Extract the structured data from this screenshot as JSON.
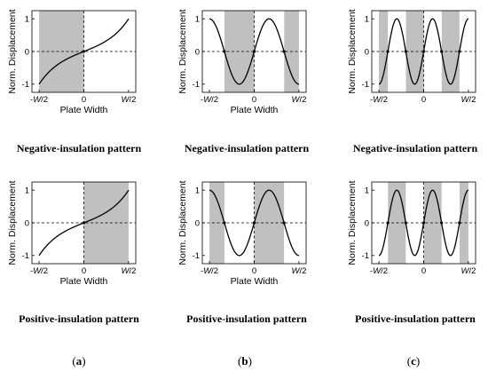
{
  "chart_data": [
    {
      "type": "line",
      "row": "negative",
      "column": "a",
      "x_range": [
        -0.5,
        0.5
      ],
      "ylim": [
        -1,
        1
      ],
      "xticks": [
        "-W/2",
        "0",
        "W/2"
      ],
      "yticks": [
        "1",
        "0",
        "-1"
      ],
      "xlabel": "Plate Width",
      "ylabel": "Norm. Displacement",
      "curve": "sinh",
      "half_waves": 1,
      "shaded_sign": "negative",
      "marked_zeros": [
        0
      ]
    },
    {
      "type": "line",
      "row": "negative",
      "column": "b",
      "x_range": [
        -0.5,
        0.5
      ],
      "ylim": [
        -1,
        1
      ],
      "xticks": [
        "-W/2",
        "0",
        "W/2"
      ],
      "yticks": [
        "1",
        "0",
        "-1"
      ],
      "xlabel": "Plate Width",
      "ylabel": "Norm. Displacement",
      "curve": "sine",
      "half_waves": 3,
      "shaded_sign": "negative",
      "marked_zeros": [
        -0.333,
        0,
        0.333
      ]
    },
    {
      "type": "line",
      "row": "negative",
      "column": "c",
      "x_range": [
        -0.5,
        0.5
      ],
      "ylim": [
        -1,
        1
      ],
      "xticks": [
        "-W/2",
        "0",
        "W/2"
      ],
      "yticks": [
        "1",
        "0",
        "-1"
      ],
      "xlabel": "",
      "ylabel": "Norm. Displacement",
      "curve": "sine",
      "half_waves": 5,
      "shaded_sign": "negative",
      "marked_zeros": [
        -0.4,
        -0.2,
        0,
        0.2,
        0.4
      ]
    },
    {
      "type": "line",
      "row": "positive",
      "column": "a",
      "x_range": [
        -0.5,
        0.5
      ],
      "ylim": [
        -1,
        1
      ],
      "xticks": [
        "-W/2",
        "0",
        "W/2"
      ],
      "yticks": [
        "1",
        "0",
        "-1"
      ],
      "xlabel": "Plate Width",
      "ylabel": "Norm. Displacement",
      "curve": "sinh",
      "half_waves": 1,
      "shaded_sign": "positive",
      "marked_zeros": [
        0
      ]
    },
    {
      "type": "line",
      "row": "positive",
      "column": "b",
      "x_range": [
        -0.5,
        0.5
      ],
      "ylim": [
        -1,
        1
      ],
      "xticks": [
        "-W/2",
        "0",
        "W/2"
      ],
      "yticks": [
        "1",
        "0",
        "-1"
      ],
      "xlabel": "Plate Width",
      "ylabel": "Norm. Displacement",
      "curve": "sine",
      "half_waves": 3,
      "shaded_sign": "positive",
      "marked_zeros": [
        -0.333,
        0,
        0.333
      ]
    },
    {
      "type": "line",
      "row": "positive",
      "column": "c",
      "x_range": [
        -0.5,
        0.5
      ],
      "ylim": [
        -1,
        1
      ],
      "xticks": [
        "-W/2",
        "0",
        "W/2"
      ],
      "yticks": [
        "1",
        "0",
        "-1"
      ],
      "xlabel": "",
      "ylabel": "Norm. Displacement",
      "curve": "sine",
      "half_waves": 5,
      "shaded_sign": "positive",
      "marked_zeros": [
        -0.4,
        -0.2,
        0,
        0.2,
        0.4
      ]
    }
  ],
  "captions": {
    "negative": "Negative-insulation pattern",
    "positive": "Positive-insulation pattern"
  },
  "panel_labels": {
    "a": [
      "(",
      "a",
      ")"
    ],
    "b": [
      "(",
      "b",
      ")"
    ],
    "c": [
      "(",
      "c",
      ")"
    ]
  },
  "colors": {
    "shade": "#c0c0c0",
    "curve": "#000000",
    "dash": "#000000"
  }
}
